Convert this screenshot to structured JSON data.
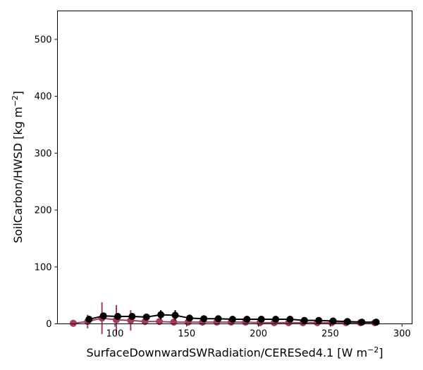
{
  "chart_data": {
    "type": "line",
    "xlabel": "SurfaceDownwardSWRadiation/CERESed4.1 [W m",
    "xlabel_unit_sup": "−2",
    "xlabel_close": "]",
    "ylabel": "SoilCarbon/HWSD [kg m",
    "ylabel_unit_sup": "−2",
    "ylabel_close": "]",
    "xlim": [
      60,
      307
    ],
    "ylim": [
      0,
      550
    ],
    "xticks": [
      100,
      150,
      200,
      250,
      300
    ],
    "yticks": [
      0,
      100,
      200,
      300,
      400,
      500
    ],
    "grid": false,
    "legend": "none",
    "series": [
      {
        "color": "#a8385f",
        "x": [
          71,
          81,
          91,
          101,
          111,
          121,
          131,
          141,
          151,
          161,
          171,
          181,
          191,
          201,
          211,
          221,
          231,
          241,
          251,
          261,
          271,
          281
        ],
        "y": [
          1,
          4,
          10,
          7,
          6,
          4,
          4,
          3,
          3,
          3,
          3,
          3,
          3,
          2,
          2,
          2,
          2,
          2,
          2,
          2,
          2,
          2
        ],
        "err": [
          1,
          12,
          28,
          26,
          18,
          5,
          4,
          3,
          2,
          2,
          2,
          2,
          2,
          2,
          1,
          1,
          1,
          1,
          1,
          1,
          1,
          1
        ]
      },
      {
        "color": "#000000",
        "x": [
          82,
          92,
          102,
          112,
          122,
          132,
          142,
          152,
          162,
          172,
          182,
          192,
          202,
          212,
          222,
          232,
          242,
          252,
          262,
          272,
          282
        ],
        "y": [
          8,
          14,
          13,
          13,
          12,
          16,
          15,
          10,
          9,
          9,
          8,
          8,
          8,
          8,
          8,
          6,
          6,
          5,
          4,
          3,
          3
        ],
        "err": [
          3,
          5,
          6,
          6,
          5,
          8,
          9,
          3,
          3,
          3,
          2,
          2,
          3,
          3,
          3,
          2,
          2,
          2,
          2,
          1,
          1
        ]
      }
    ]
  }
}
